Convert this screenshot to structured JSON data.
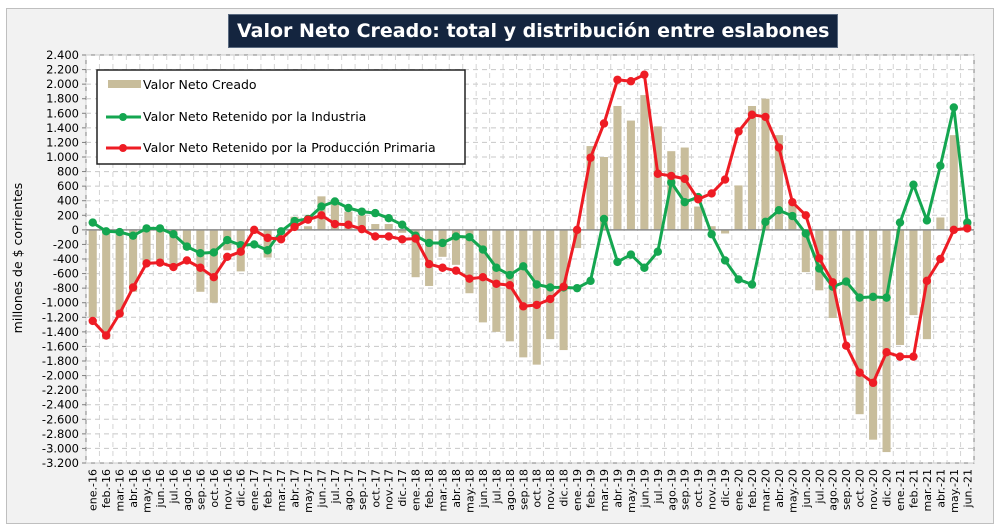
{
  "chart_data": {
    "type": "bar",
    "title": "Valor Neto Creado: total y distribución entre eslabones",
    "xlabel": "",
    "ylabel": "millones de $ corrientes",
    "ylim": [
      -3200,
      2400
    ],
    "ytick_step": 200,
    "yticks": [
      "2.400",
      "2.200",
      "2.000",
      "1.800",
      "1.600",
      "1.400",
      "1.200",
      "1.000",
      "800",
      "600",
      "400",
      "200",
      "0",
      "-200",
      "-400",
      "-600",
      "-800",
      "-1.000",
      "-1.200",
      "-1.400",
      "-1.600",
      "-1.800",
      "-2.000",
      "-2.200",
      "-2.400",
      "-2.600",
      "-2.800",
      "-3.000",
      "-3.200"
    ],
    "grid": true,
    "legend_position": "top-left",
    "categories": [
      "ene.-16",
      "feb.-16",
      "mar.-16",
      "abr.-16",
      "may.-16",
      "jun.-16",
      "jul.-16",
      "ago.-16",
      "sep.-16",
      "oct.-16",
      "nov.-16",
      "dic.-16",
      "ene.-17",
      "feb.-17",
      "mar.-17",
      "abr.-17",
      "may.-17",
      "jun.-17",
      "jul.-17",
      "ago.-17",
      "sep.-17",
      "oct.-17",
      "nov.-17",
      "dic.-17",
      "ene.-18",
      "feb.-18",
      "mar.-18",
      "abr.-18",
      "may.-18",
      "jun.-18",
      "jul.-18",
      "ago.-18",
      "sep.-18",
      "oct.-18",
      "nov.-18",
      "dic.-18",
      "ene.-19",
      "feb.-19",
      "mar.-19",
      "abr.-19",
      "may.-19",
      "jun.-19",
      "jul.-19",
      "ago.-19",
      "sep.-19",
      "oct.-19",
      "nov.-19",
      "dic.-19",
      "ene.-20",
      "feb.-20",
      "mar.-20",
      "abr.-20",
      "may.-20",
      "jun.-20",
      "jul.-20",
      "ago.-20",
      "sep.-20",
      "oct.-20",
      "nov.-20",
      "dic.-20",
      "ene.-21",
      "feb.-21",
      "mar.-21",
      "abr.-21",
      "may.-21",
      "jun.-21"
    ],
    "series": [
      {
        "name": "Valor Neto Creado",
        "kind": "bar",
        "color": "#c8bd9b",
        "values": [
          -1200,
          -1500,
          -1180,
          -850,
          -450,
          -420,
          -530,
          -270,
          -850,
          -1000,
          -280,
          -570,
          -50,
          -380,
          -60,
          180,
          50,
          460,
          400,
          250,
          200,
          80,
          80,
          -40,
          -650,
          -770,
          -370,
          -480,
          -870,
          -1270,
          -1400,
          -1530,
          -1750,
          -1850,
          -1500,
          -1650,
          -250,
          1150,
          1000,
          1700,
          1500,
          1850,
          1420,
          1080,
          1130,
          320,
          50,
          -50,
          610,
          1700,
          1800,
          1300,
          380,
          -580,
          -830,
          -1210,
          -1450,
          -2530,
          -2880,
          -3050,
          -1580,
          -1170,
          -1500,
          170,
          1300,
          100
        ]
      },
      {
        "name": "Valor Neto Retenido por la Industria",
        "kind": "line",
        "color": "#14a650",
        "values": [
          100,
          -20,
          -30,
          -80,
          20,
          20,
          -60,
          -230,
          -320,
          -310,
          -140,
          -210,
          -200,
          -280,
          -20,
          120,
          150,
          320,
          390,
          300,
          250,
          230,
          160,
          70,
          -80,
          -180,
          -180,
          -90,
          -100,
          -270,
          -520,
          -620,
          -500,
          -750,
          -790,
          -790,
          -800,
          -700,
          150,
          -440,
          -340,
          -520,
          -300,
          650,
          380,
          450,
          -60,
          -420,
          -680,
          -750,
          110,
          270,
          190,
          -50,
          -530,
          -780,
          -710,
          -930,
          -920,
          -930,
          100,
          620,
          130,
          880,
          1680,
          100
        ]
      },
      {
        "name": "Valor Neto Retenido por la Producción Primaria",
        "kind": "line",
        "color": "#ee1c24",
        "values": [
          -1250,
          -1450,
          -1150,
          -790,
          -460,
          -450,
          -510,
          -420,
          -520,
          -650,
          -370,
          -300,
          0,
          -110,
          -130,
          40,
          140,
          200,
          80,
          70,
          10,
          -90,
          -90,
          -130,
          -120,
          -470,
          -520,
          -560,
          -670,
          -650,
          -740,
          -760,
          -1050,
          -1030,
          -950,
          -780,
          0,
          990,
          1460,
          2060,
          2040,
          2130,
          770,
          740,
          700,
          420,
          500,
          690,
          1350,
          1580,
          1550,
          1130,
          380,
          200,
          -390,
          -720,
          -1590,
          -1960,
          -2100,
          -1680,
          -1740,
          -1740,
          -700,
          -400,
          0,
          20
        ]
      }
    ]
  }
}
